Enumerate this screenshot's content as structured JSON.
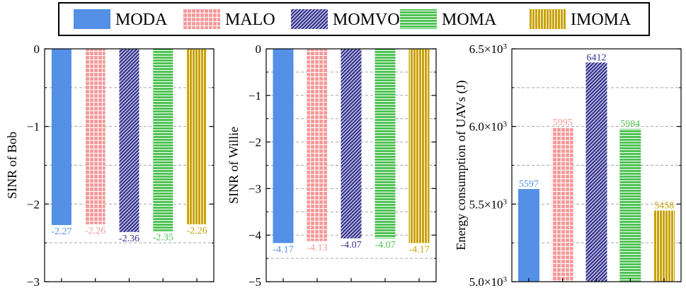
{
  "legend": [
    {
      "name": "MODA",
      "color": "#5390e6",
      "pattern": "solid"
    },
    {
      "name": "MALO",
      "color": "#f59a9a",
      "pattern": "grid"
    },
    {
      "name": "MOMVO",
      "color": "#35338f",
      "pattern": "diagonal"
    },
    {
      "name": "MOMA",
      "color": "#4fc254",
      "pattern": "horizontal"
    },
    {
      "name": "IMOMA",
      "color": "#c9a204",
      "pattern": "vertical"
    }
  ],
  "chart_data": [
    {
      "type": "bar",
      "ylabel": "SINR of Bob",
      "categories": [
        "MODA",
        "MALO",
        "MOMVO",
        "MOMA",
        "IMOMA"
      ],
      "values": [
        -2.27,
        -2.26,
        -2.36,
        -2.35,
        -2.26
      ],
      "value_labels": [
        "-2.27",
        "-2.26",
        "-2.36",
        "-2.35",
        "-2.26"
      ],
      "ylim": [
        -3,
        0
      ],
      "ticks": [
        0,
        -1,
        -2,
        -3
      ],
      "tick_labels": [
        "0",
        "−1",
        "−2",
        "−3"
      ],
      "grid": [
        -0.5,
        -1,
        -1.5,
        -2,
        -2.5
      ],
      "bar_baseline": 0
    },
    {
      "type": "bar",
      "ylabel": "SINR of Willie",
      "categories": [
        "MODA",
        "MALO",
        "MOMVO",
        "MOMA",
        "IMOMA"
      ],
      "values": [
        -4.17,
        -4.13,
        -4.07,
        -4.07,
        -4.17
      ],
      "value_labels": [
        "-4.17",
        "-4.13",
        "-4.07",
        "-4.07",
        "-4.17"
      ],
      "ylim": [
        -5,
        0
      ],
      "ticks": [
        0,
        -1,
        -2,
        -3,
        -4,
        -5
      ],
      "tick_labels": [
        "0",
        "−1",
        "−2",
        "−3",
        "−4",
        "−5"
      ],
      "grid": [
        -0.5,
        -1,
        -1.5,
        -2,
        -2.5,
        -3,
        -3.5,
        -4,
        -4.5
      ],
      "bar_baseline": 0
    },
    {
      "type": "bar",
      "ylabel": "Energy consumption of UAVs (J)",
      "categories": [
        "MODA",
        "MALO",
        "MOMVO",
        "MOMA",
        "IMOMA"
      ],
      "values": [
        5597,
        5995,
        6412,
        5984,
        5458
      ],
      "value_labels": [
        "5597",
        "5995",
        "6412",
        "5984",
        "5458"
      ],
      "ylim": [
        5000,
        6500
      ],
      "ticks": [
        5000,
        5500,
        6000,
        6500
      ],
      "tick_labels": [
        {
          "mantissa": "5.0×10",
          "exp": "3"
        },
        {
          "mantissa": "5.5×10",
          "exp": "3"
        },
        {
          "mantissa": "6.0×10",
          "exp": "3"
        },
        {
          "mantissa": "6.5×10",
          "exp": "3"
        }
      ],
      "grid": [
        5250,
        5500,
        5750,
        6000,
        6250
      ],
      "bar_baseline": 5000
    }
  ]
}
